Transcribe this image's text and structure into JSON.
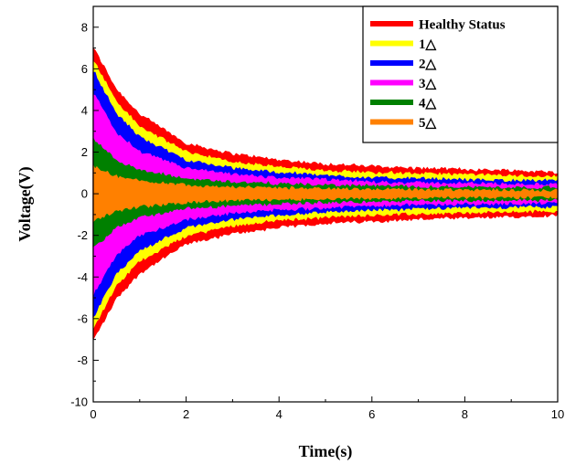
{
  "chart_data": {
    "type": "area",
    "title": "",
    "xlabel": "Time(s)",
    "ylabel": "Voltage(V)",
    "xlim": [
      0,
      10
    ],
    "ylim": [
      -10,
      9
    ],
    "xticks": [
      0,
      2,
      4,
      6,
      8,
      10
    ],
    "yticks": [
      -10,
      -8,
      -6,
      -4,
      -2,
      0,
      2,
      4,
      6,
      8
    ],
    "grid": false,
    "legend_position": "top-right",
    "series": [
      {
        "name": "Healthy Status",
        "color": "#ff0000",
        "x": [
          0,
          0.5,
          1,
          2,
          3,
          4,
          5,
          6,
          7,
          8,
          9,
          10
        ],
        "upper": [
          7.0,
          5.0,
          3.8,
          2.4,
          1.9,
          1.6,
          1.4,
          1.3,
          1.2,
          1.15,
          1.1,
          1.0
        ],
        "lower": [
          -7.0,
          -5.0,
          -3.8,
          -2.4,
          -1.9,
          -1.6,
          -1.4,
          -1.3,
          -1.2,
          -1.15,
          -1.1,
          -1.0
        ]
      },
      {
        "name": "1△",
        "color": "#ffff00",
        "x": [
          0,
          0.5,
          1,
          2,
          3,
          4,
          5,
          6,
          7,
          8,
          9,
          10
        ],
        "upper": [
          6.4,
          4.4,
          3.2,
          2.0,
          1.5,
          1.25,
          1.1,
          1.0,
          0.95,
          0.9,
          0.85,
          0.8
        ],
        "lower": [
          -6.4,
          -4.4,
          -3.2,
          -2.0,
          -1.5,
          -1.25,
          -1.1,
          -1.0,
          -0.95,
          -0.9,
          -0.85,
          -0.8
        ]
      },
      {
        "name": "2△",
        "color": "#0000ff",
        "x": [
          0,
          0.5,
          1,
          2,
          3,
          4,
          5,
          6,
          7,
          8,
          9,
          10
        ],
        "upper": [
          5.9,
          3.8,
          2.7,
          1.6,
          1.2,
          1.0,
          0.85,
          0.75,
          0.7,
          0.65,
          0.62,
          0.6
        ],
        "lower": [
          -5.9,
          -3.8,
          -2.7,
          -1.6,
          -1.2,
          -1.0,
          -0.85,
          -0.75,
          -0.7,
          -0.65,
          -0.62,
          -0.6
        ]
      },
      {
        "name": "3△",
        "color": "#ff00ff",
        "x": [
          0,
          0.5,
          1,
          2,
          3,
          4,
          5,
          6,
          7,
          8,
          9,
          10
        ],
        "upper": [
          4.8,
          2.9,
          2.0,
          1.2,
          0.9,
          0.75,
          0.65,
          0.55,
          0.5,
          0.48,
          0.45,
          0.42
        ],
        "lower": [
          -4.8,
          -2.9,
          -2.0,
          -1.2,
          -0.9,
          -0.75,
          -0.65,
          -0.55,
          -0.5,
          -0.48,
          -0.45,
          -0.42
        ]
      },
      {
        "name": "4△",
        "color": "#008000",
        "x": [
          0,
          0.5,
          1,
          2,
          3,
          4,
          5,
          6,
          7,
          8,
          9,
          10
        ],
        "upper": [
          2.6,
          1.6,
          1.1,
          0.7,
          0.55,
          0.45,
          0.4,
          0.35,
          0.32,
          0.3,
          0.28,
          0.27
        ],
        "lower": [
          -2.6,
          -1.6,
          -1.1,
          -0.7,
          -0.55,
          -0.45,
          -0.4,
          -0.35,
          -0.32,
          -0.3,
          -0.28,
          -0.27
        ]
      },
      {
        "name": "5△",
        "color": "#ff8000",
        "x": [
          0,
          0.5,
          1,
          2,
          3,
          4,
          5,
          6,
          7,
          8,
          9,
          10
        ],
        "upper": [
          1.3,
          0.8,
          0.6,
          0.4,
          0.3,
          0.25,
          0.22,
          0.2,
          0.18,
          0.17,
          0.16,
          0.15
        ],
        "lower": [
          -1.3,
          -0.8,
          -0.6,
          -0.4,
          -0.3,
          -0.25,
          -0.22,
          -0.2,
          -0.18,
          -0.17,
          -0.16,
          -0.15
        ]
      }
    ]
  }
}
